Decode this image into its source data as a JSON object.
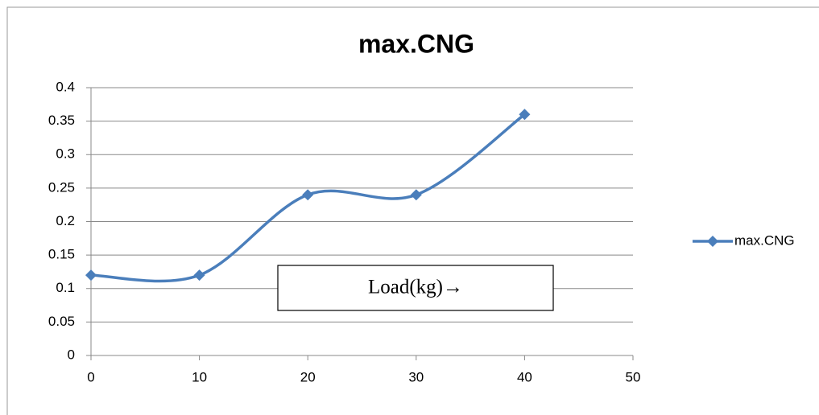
{
  "chart_data": {
    "type": "line",
    "title": "max.CNG",
    "annotation": "Load(kg)→",
    "x": [
      0,
      10,
      20,
      30,
      40
    ],
    "series": [
      {
        "name": "max.CNG",
        "color": "#4a7ebb",
        "values": [
          0.12,
          0.12,
          0.24,
          0.24,
          0.36
        ]
      }
    ],
    "xlim": [
      0,
      50
    ],
    "xticks": [
      0,
      10,
      20,
      30,
      40,
      50
    ],
    "ylim": [
      0,
      0.4
    ],
    "yticks": [
      0,
      0.05,
      0.1,
      0.15,
      0.2,
      0.25,
      0.3,
      0.35,
      0.4
    ],
    "grid": true,
    "smooth": true,
    "legend": "right"
  }
}
